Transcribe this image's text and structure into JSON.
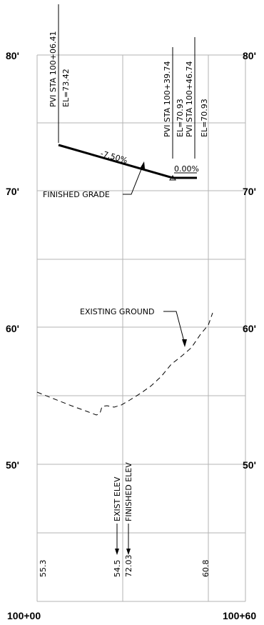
{
  "axes": {
    "y_ticks": [
      "80'",
      "70'",
      "60'",
      "50'"
    ],
    "x_ticks": [
      "100+00",
      "100+60"
    ]
  },
  "pvi": [
    {
      "sta": "PVI STA 100+06.41",
      "el": "EL=73.42"
    },
    {
      "sta": "PVI STA 100+39.74",
      "el": "EL=70.93"
    },
    {
      "sta": "PVI STA 100+46.74",
      "el": "EL=70.93"
    }
  ],
  "grades": [
    "-7.50%",
    "0.00%"
  ],
  "callouts": {
    "finished_grade": "FINISHED GRADE",
    "existing_ground": "EXISTING GROUND",
    "exist_elev": "EXIST ELEV",
    "finished_elev": "FINISHED ELEV"
  },
  "bottom_values": [
    "55.3",
    "54.5",
    "72.03",
    "60.8"
  ],
  "colors": {
    "grid": "#b3b3b3",
    "ink": "#000000"
  }
}
